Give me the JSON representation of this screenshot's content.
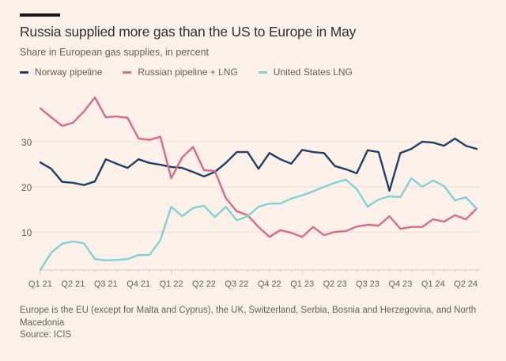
{
  "header": {
    "title": "Russia supplied more gas than the US to Europe in May",
    "subtitle": "Share in European gas supplies, in percent"
  },
  "legend": [
    {
      "label": "Norway pipeline",
      "color": "#1f3f66"
    },
    {
      "label": "Russian pipeline + LNG",
      "color": "#d86a8c"
    },
    {
      "label": "United States LNG",
      "color": "#7fd3d6"
    }
  ],
  "footer": {
    "note": "Europe is the EU (except for Malta and Cyprus), the UK, Switzerland, Serbia, Bosnia and Herzegovina, and North Macedonia",
    "source": "Source: ICIS"
  },
  "chart_data": {
    "type": "line",
    "title": "Russia supplied more gas than the US to Europe in May",
    "subtitle": "Share in European gas supplies, in percent",
    "xlabel": "",
    "ylabel": "Share in European gas supplies, in percent",
    "frequency": "monthly",
    "x_start": "Jan 2021",
    "x_end": "May 2024",
    "x_tick_labels": [
      "Q1 21",
      "Q2 21",
      "Q3 21",
      "Q4 21",
      "Q1 22",
      "Q2 22",
      "Q3 22",
      "Q4 22",
      "Q1 23",
      "Q2 23",
      "Q3 23",
      "Q4 23",
      "Q1 24",
      "Q2 24"
    ],
    "y_ticks": [
      10,
      20,
      30
    ],
    "ylim": [
      1.5,
      41
    ],
    "grid": true,
    "legend_position": "top-left",
    "series": [
      {
        "name": "Norway pipeline",
        "color": "#1f3f66",
        "values": [
          25.4,
          24.0,
          21.1,
          20.9,
          20.4,
          21.2,
          26.1,
          25.1,
          24.2,
          26.1,
          25.3,
          24.9,
          24.4,
          24.2,
          23.3,
          22.3,
          23.3,
          25.3,
          27.7,
          27.7,
          24.0,
          27.5,
          26.1,
          25.1,
          28.2,
          27.7,
          27.5,
          24.6,
          23.9,
          23.0,
          28.1,
          27.7,
          19.1,
          27.5,
          28.4,
          30.0,
          29.8,
          29.1,
          30.7,
          29.1,
          28.4
        ]
      },
      {
        "name": "Russian pipeline + LNG",
        "color": "#d86a8c",
        "values": [
          37.4,
          35.4,
          33.5,
          34.2,
          36.7,
          39.8,
          35.4,
          35.6,
          35.3,
          30.7,
          30.4,
          31.1,
          21.9,
          26.5,
          28.8,
          23.7,
          23.5,
          17.5,
          14.6,
          13.7,
          11.1,
          8.9,
          10.4,
          9.8,
          8.9,
          11.1,
          9.3,
          10.0,
          10.2,
          11.2,
          11.6,
          11.4,
          13.5,
          10.7,
          11.1,
          11.1,
          12.8,
          12.3,
          13.7,
          12.8,
          15.2
        ]
      },
      {
        "name": "United States LNG",
        "color": "#7fd3d6",
        "values": [
          1.6,
          5.4,
          7.4,
          7.9,
          7.5,
          4.0,
          3.7,
          3.8,
          4.0,
          4.9,
          4.9,
          8.2,
          15.6,
          13.5,
          15.3,
          15.8,
          13.3,
          15.6,
          12.6,
          13.5,
          15.6,
          16.3,
          16.3,
          17.4,
          18.1,
          19.0,
          20.0,
          20.9,
          21.6,
          19.5,
          15.6,
          17.2,
          17.9,
          17.7,
          21.9,
          20.0,
          21.4,
          20.2,
          17.0,
          17.7,
          15.1
        ]
      }
    ]
  }
}
